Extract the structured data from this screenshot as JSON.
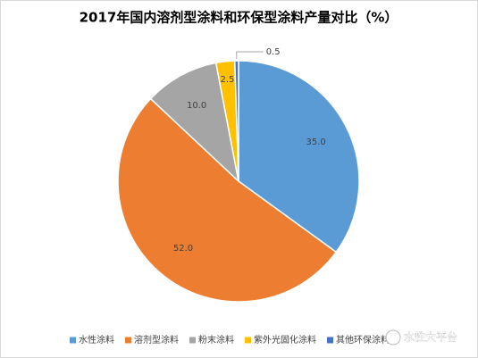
{
  "chart_data": {
    "type": "pie",
    "title": "2017年国内溶剂型涂料和环保型涂料产量对比（%）",
    "categories": [
      "水性涂料",
      "溶剂型涂料",
      "粉末涂料",
      "紫外光固化涂料",
      "其他环保涂料"
    ],
    "values": [
      35,
      52,
      10,
      2.5,
      0.5
    ],
    "value_labels": [
      "35.0",
      "52.0",
      "10.0",
      "2.5",
      "0.5"
    ],
    "colors": [
      "#5b9bd5",
      "#ed7d31",
      "#a5a5a5",
      "#ffc000",
      "#4472c4"
    ],
    "legend": "bottom",
    "watermark": "水性大平台"
  }
}
